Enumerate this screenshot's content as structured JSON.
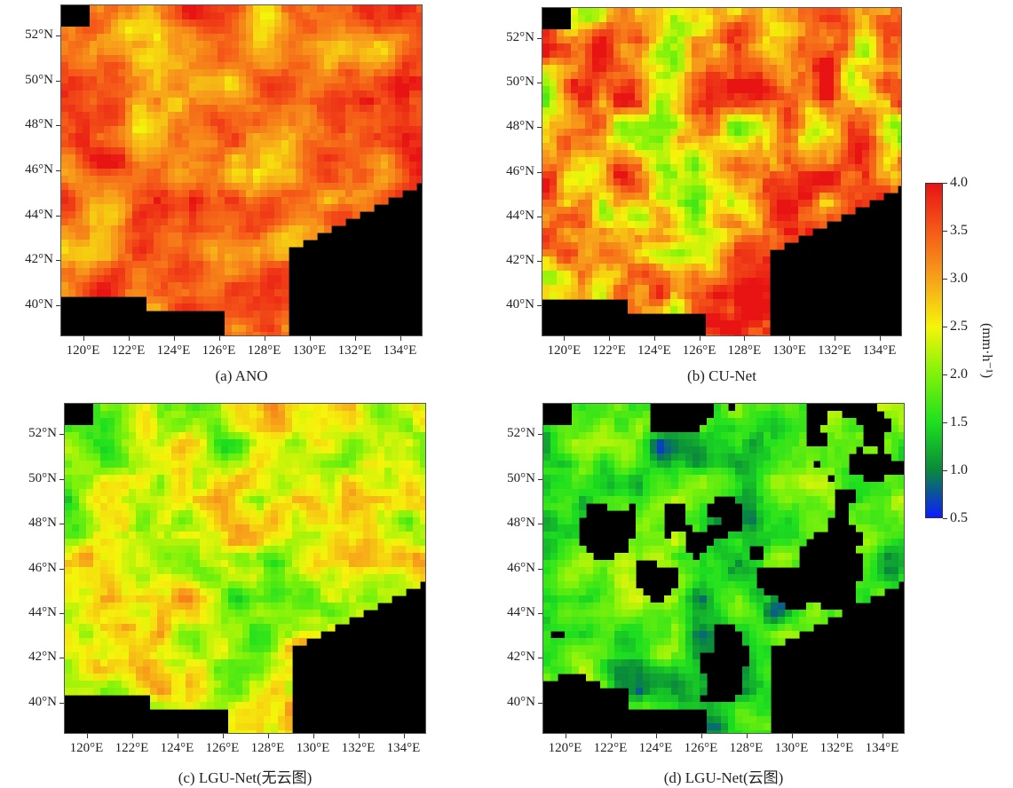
{
  "chart_data": {
    "type": "heatmap",
    "colorbar": {
      "ticks": [
        "4.0",
        "3.5",
        "3.0",
        "2.5",
        "2.0",
        "1.5",
        "1.0",
        "0.5"
      ],
      "range": [
        0.5,
        4.0
      ],
      "label": "(mm·h⁻¹)",
      "colormap": [
        "#0a1cff",
        "#0a8a3a",
        "#1ee01e",
        "#7ff20a",
        "#f5f50a",
        "#f7a21a",
        "#f55a18",
        "#e81414"
      ]
    },
    "x_tick_labels": [
      "120°E",
      "122°E",
      "124°E",
      "126°E",
      "128°E",
      "130°E",
      "132°E",
      "134°E"
    ],
    "x_ticks": [
      120,
      122,
      124,
      126,
      128,
      130,
      132,
      134
    ],
    "y_tick_labels": [
      "52°N",
      "50°N",
      "48°N",
      "46°N",
      "44°N",
      "42°N",
      "40°N"
    ],
    "y_ticks": [
      52,
      50,
      48,
      46,
      44,
      42,
      40
    ],
    "xlim": [
      119.0,
      135.0
    ],
    "ylim": [
      38.6,
      53.4
    ],
    "panels": [
      {
        "caption": "(a) ANO",
        "mean_rate": 3.3,
        "variability": 0.55,
        "masked_unobserved": false
      },
      {
        "caption": "(b) CU-Net",
        "mean_rate": 3.1,
        "variability": 0.9,
        "masked_unobserved": false
      },
      {
        "caption": "(c) LGU-Net(无云图)",
        "mean_rate": 2.3,
        "variability": 0.6,
        "masked_unobserved": false
      },
      {
        "caption": "(d) LGU-Net(云图)",
        "mean_rate": 1.6,
        "variability": 0.55,
        "masked_unobserved": true
      }
    ]
  }
}
